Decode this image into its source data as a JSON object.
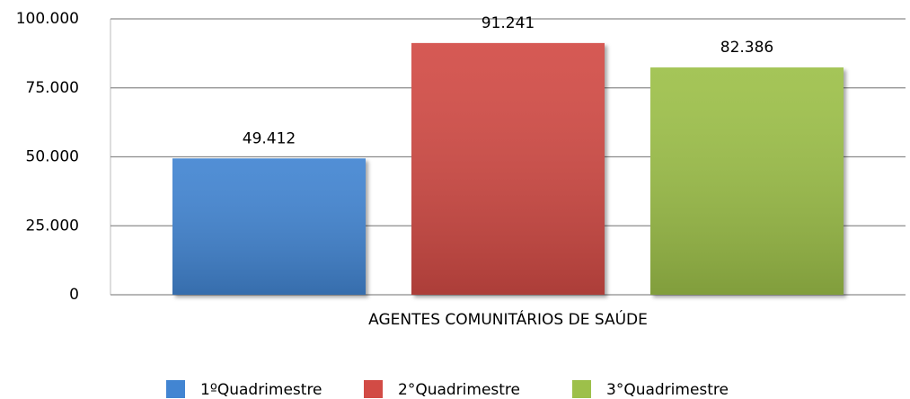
{
  "chart_data": {
    "type": "bar",
    "categories": [
      "AGENTES COMUNITÁRIOS DE SAÚDE"
    ],
    "series": [
      {
        "name": "1ºQuadrimestre",
        "color": "#4285d2",
        "values": [
          49412
        ],
        "value_labels": [
          "49.412"
        ]
      },
      {
        "name": "2°Quadrimestre",
        "color": "#d24b45",
        "values": [
          91241
        ],
        "value_labels": [
          "91.241"
        ]
      },
      {
        "name": "3°Quadrimestre",
        "color": "#9dc04a",
        "values": [
          82386
        ],
        "value_labels": [
          "82.386"
        ]
      }
    ],
    "ylim": [
      0,
      100000
    ],
    "yticks": [
      0,
      {
        "value": 25000,
        "label": "25.000"
      },
      {
        "value": 50000,
        "label": "50.000"
      },
      {
        "value": 75000,
        "label": "75.000"
      },
      {
        "value": 100000,
        "label": "100.000"
      }
    ],
    "grid": true,
    "legend": "bottom"
  }
}
